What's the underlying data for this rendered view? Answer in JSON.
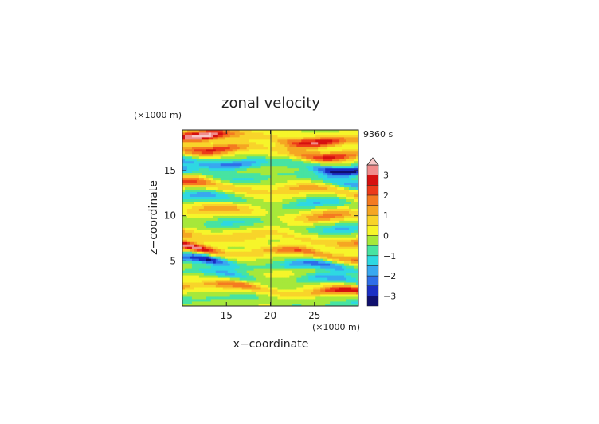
{
  "chart_data": {
    "type": "heatmap",
    "title": "zonal velocity",
    "xlabel": "x−coordinate",
    "ylabel": "z−coordinate",
    "x_unit": "(×1000 m)",
    "y_unit": "(×1000 m)",
    "time_label": "9360 s",
    "xlim": [
      10,
      30
    ],
    "ylim": [
      0,
      19.5
    ],
    "x_ticks": [
      15,
      20,
      25
    ],
    "y_ticks": [
      5,
      10,
      15
    ],
    "grid": false,
    "colorbar": {
      "levels": [
        -3.5,
        -3,
        -2.5,
        -2,
        -1.5,
        -1,
        -0.5,
        0,
        0.5,
        1,
        1.5,
        2,
        2.5,
        3,
        3.5
      ],
      "tick_values": [
        -3,
        -2,
        -1,
        0,
        1,
        2,
        3
      ],
      "tick_labels": [
        "−3",
        "−2",
        "−1",
        "0",
        "1",
        "2",
        "3"
      ],
      "colors": [
        "#10106e",
        "#1b2fc4",
        "#2f6ee8",
        "#39a8f0",
        "#2ed8e2",
        "#47e3a2",
        "#a6e83a",
        "#f6f52a",
        "#f8d42a",
        "#f5a623",
        "#f47a21",
        "#ec3a1a",
        "#d61010",
        "#f08c8c",
        "#f7c8c8"
      ]
    },
    "bands": [
      {
        "z": 0.6,
        "amp": -1.2,
        "w": 0.45
      },
      {
        "z": 1.9,
        "amp": 2.6,
        "w": 0.45
      },
      {
        "z": 3.2,
        "amp": -1.6,
        "w": 0.5
      },
      {
        "z": 4.6,
        "amp": -2.8,
        "w": 0.5
      },
      {
        "z": 6.0,
        "amp": 3.0,
        "w": 0.45
      },
      {
        "z": 7.6,
        "amp": 1.6,
        "w": 0.6
      },
      {
        "z": 9.0,
        "amp": -1.4,
        "w": 0.6
      },
      {
        "z": 10.3,
        "amp": 1.5,
        "w": 0.6
      },
      {
        "z": 11.6,
        "amp": -1.6,
        "w": 0.6
      },
      {
        "z": 13.0,
        "amp": 2.0,
        "w": 0.6
      },
      {
        "z": 14.3,
        "amp": -1.8,
        "w": 0.6
      },
      {
        "z": 15.7,
        "amp": -3.1,
        "w": 0.55
      },
      {
        "z": 17.2,
        "amp": 2.6,
        "w": 0.55
      },
      {
        "z": 18.6,
        "amp": 3.6,
        "w": 0.55
      }
    ]
  }
}
